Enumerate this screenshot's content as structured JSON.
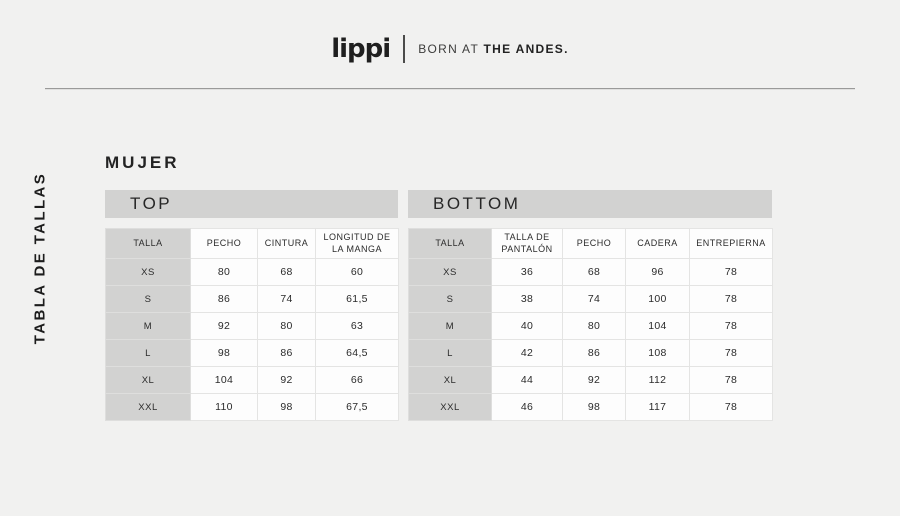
{
  "header": {
    "logo_text": "lippi",
    "tagline_regular": "BORN AT ",
    "tagline_bold": "THE ANDES."
  },
  "sidebar": {
    "vertical_label": "TABLA DE TALLAS"
  },
  "section": {
    "title": "MUJER"
  },
  "tables": {
    "top": {
      "title": "TOP",
      "columns": [
        "TALLA",
        "PECHO",
        "CINTURA",
        "LONGITUD DE LA MANGA"
      ],
      "rows": [
        [
          "XS",
          "80",
          "68",
          "60"
        ],
        [
          "S",
          "86",
          "74",
          "61,5"
        ],
        [
          "M",
          "92",
          "80",
          "63"
        ],
        [
          "L",
          "98",
          "86",
          "64,5"
        ],
        [
          "XL",
          "104",
          "92",
          "66"
        ],
        [
          "XXL",
          "110",
          "98",
          "67,5"
        ]
      ]
    },
    "bottom": {
      "title": "BOTTOM",
      "columns": [
        "TALLA",
        "TALLA DE PANTALÓN",
        "PECHO",
        "CADERA",
        "ENTREPIERNA"
      ],
      "rows": [
        [
          "XS",
          "36",
          "68",
          "96",
          "78"
        ],
        [
          "S",
          "38",
          "74",
          "100",
          "78"
        ],
        [
          "M",
          "40",
          "80",
          "104",
          "78"
        ],
        [
          "L",
          "42",
          "86",
          "108",
          "78"
        ],
        [
          "XL",
          "44",
          "92",
          "112",
          "78"
        ],
        [
          "XXL",
          "46",
          "98",
          "117",
          "78"
        ]
      ]
    }
  },
  "colors": {
    "page_bg": "#f1f1f0",
    "band_bg": "#d2d2d1",
    "cell_bg": "#fdfdfd",
    "cell_border": "#e4e4e3",
    "text": "#2e2e2e",
    "divider": "#9a9a99"
  }
}
